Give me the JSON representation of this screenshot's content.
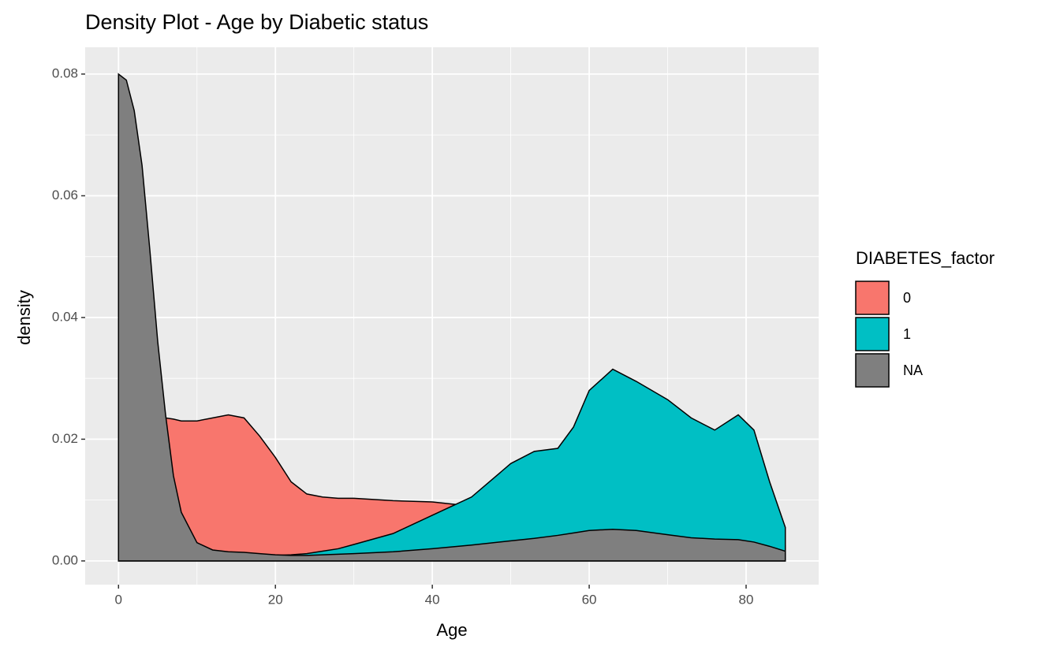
{
  "chart_data": {
    "type": "density",
    "title": "Density Plot - Age by Diabetic status",
    "x_label": "Age",
    "y_label": "density",
    "legend_title": "DIABETES_factor",
    "x": [
      0,
      1,
      2,
      3,
      4,
      5,
      6,
      7,
      8,
      10,
      12,
      14,
      16,
      18,
      20,
      22,
      24,
      26,
      28,
      30,
      35,
      40,
      45,
      50,
      53,
      56,
      58,
      60,
      63,
      66,
      70,
      73,
      76,
      79,
      81,
      83,
      85
    ],
    "series": [
      {
        "name": "0",
        "color": "#F8766D",
        "values": [
          0.0123,
          0.015,
          0.018,
          0.02,
          0.022,
          0.023,
          0.0235,
          0.0233,
          0.023,
          0.023,
          0.0235,
          0.024,
          0.0235,
          0.0205,
          0.017,
          0.013,
          0.011,
          0.0105,
          0.0103,
          0.0103,
          0.0099,
          0.0097,
          0.009,
          0.008,
          0.0075,
          0.007,
          0.0068,
          0.0066,
          0.0064,
          0.006,
          0.0055,
          0.005,
          0.0047,
          0.0045,
          0.004,
          0.0033,
          0.0025
        ]
      },
      {
        "name": "1",
        "color": "#00BFC4",
        "values": [
          0.0003,
          0.0003,
          0.0003,
          0.0004,
          0.0004,
          0.0004,
          0.0005,
          0.0005,
          0.0005,
          0.0006,
          0.0006,
          0.0007,
          0.0007,
          0.0008,
          0.0009,
          0.001,
          0.0012,
          0.0016,
          0.002,
          0.0027,
          0.0045,
          0.0075,
          0.0105,
          0.016,
          0.018,
          0.0185,
          0.022,
          0.028,
          0.0315,
          0.0295,
          0.0265,
          0.0235,
          0.0215,
          0.024,
          0.0215,
          0.013,
          0.0055
        ]
      },
      {
        "name": "NA",
        "color": "#7F7F7F",
        "values": [
          0.08,
          0.079,
          0.074,
          0.065,
          0.051,
          0.036,
          0.024,
          0.014,
          0.008,
          0.003,
          0.0018,
          0.0015,
          0.0014,
          0.0012,
          0.001,
          0.0009,
          0.0009,
          0.001,
          0.0011,
          0.0012,
          0.0015,
          0.002,
          0.0026,
          0.0033,
          0.0037,
          0.0042,
          0.0046,
          0.005,
          0.0052,
          0.005,
          0.0043,
          0.0038,
          0.0036,
          0.0035,
          0.0031,
          0.0024,
          0.0016
        ]
      }
    ],
    "xlim": [
      -4.25,
      89.25
    ],
    "ylim": [
      -0.0039,
      0.0844
    ],
    "xticks": [
      0,
      20,
      40,
      60,
      80
    ],
    "yticks": [
      {
        "value": 0,
        "label": "0.00"
      },
      {
        "value": 0.02,
        "label": "0.02"
      },
      {
        "value": 0.04,
        "label": "0.04"
      },
      {
        "value": 0.06,
        "label": "0.06"
      },
      {
        "value": 0.08,
        "label": "0.08"
      }
    ],
    "grid": true
  }
}
